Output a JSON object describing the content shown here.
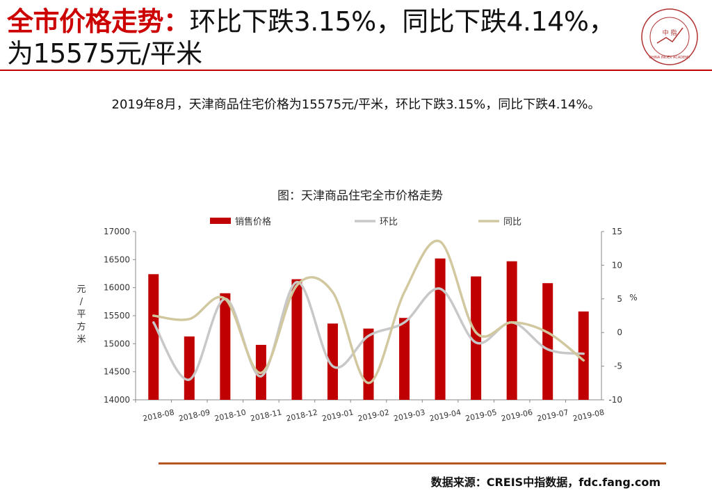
{
  "header": {
    "title_highlight": "全市价格走势：",
    "title_rest": "环比下跌3.15%，同比下跌4.14%，为15575元/平米",
    "logo_center_text": "中 指",
    "logo_ring_text": "CHINA INDEX ACADEMY"
  },
  "summary": "2019年8月，天津商品住宅价格为15575元/平米，环比下跌3.15%，同比下跌4.14%。",
  "footer": {
    "source": "数据来源：CREIS中指数据，fdc.fang.com"
  },
  "colors": {
    "accent": "#c00000",
    "bar": "#c00000",
    "mom_line": "#c8c8c8",
    "yoy_line": "#d2c8a0",
    "rule_bottom": "#b5561f"
  },
  "chart_data": {
    "type": "bar",
    "title": "图：天津商品住宅全市价格走势",
    "categories": [
      "2018-08",
      "2018-09",
      "2018-10",
      "2018-11",
      "2018-12",
      "2019-01",
      "2019-02",
      "2019-03",
      "2019-04",
      "2019-05",
      "2019-06",
      "2019-07",
      "2019-08"
    ],
    "series": [
      {
        "name": "销售价格",
        "type": "bar",
        "axis": "left",
        "values": [
          16240,
          15130,
          15900,
          14980,
          16150,
          15360,
          15270,
          15460,
          16520,
          16200,
          16470,
          16080,
          15575
        ]
      },
      {
        "name": "环比",
        "type": "line",
        "axis": "right",
        "values": [
          1.5,
          -7.0,
          5.0,
          -6.5,
          7.5,
          -5.0,
          -0.5,
          1.5,
          6.5,
          -1.5,
          1.5,
          -2.5,
          -3.15
        ]
      },
      {
        "name": "同比",
        "type": "line",
        "axis": "right",
        "values": [
          2.5,
          2.0,
          5.0,
          -6.0,
          7.0,
          6.0,
          -7.5,
          6.0,
          13.5,
          0.0,
          1.5,
          0.0,
          -4.14
        ]
      }
    ],
    "ylabel": "元/平方米",
    "y2label": "%",
    "ylim": [
      14000,
      17000
    ],
    "yticks": [
      "14000",
      "14500",
      "15000",
      "15500",
      "16000",
      "16500",
      "17000"
    ],
    "y2lim": [
      -10,
      15
    ],
    "y2ticks": [
      "-10",
      "-5",
      "0",
      "5",
      "10",
      "15"
    ],
    "legend_position": "top",
    "grid": false
  }
}
